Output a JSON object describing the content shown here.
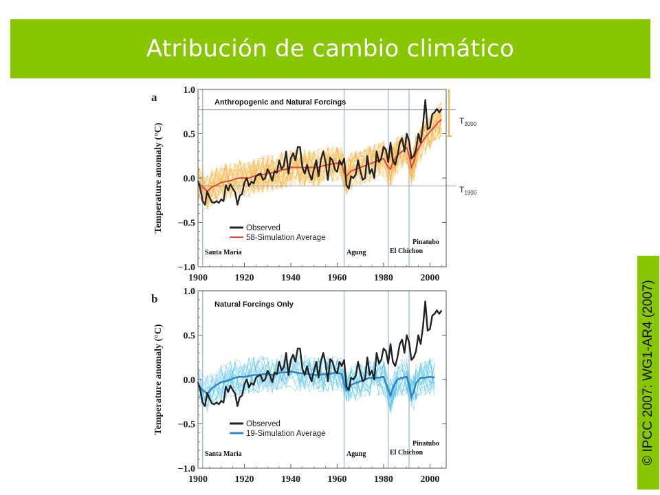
{
  "title": "Atribución de cambio climático",
  "credit": "© IPCC 2007: WG1-AR4 (2007)",
  "colors": {
    "banner": "#88c600",
    "observed": "#222222",
    "orange_mean": "#e8433b",
    "orange_ens": "#f7b84a",
    "blue_mean": "#2f86c5",
    "blue_ens": "#56c2ea",
    "volcano_line": "#9fb8cc",
    "bracket": "#f0b64c"
  },
  "axis": {
    "ylabel": "Temperature anomaly (°C)",
    "xticks": [
      "1900",
      "1920",
      "1940",
      "1960",
      "1980",
      "2000"
    ],
    "yticks": [
      "1.0",
      "0.5",
      "0.0",
      "−0.5",
      "−1.0"
    ]
  },
  "volcanoes": [
    {
      "name": "Santa Maria",
      "year": 1902
    },
    {
      "name": "Agung",
      "year": 1963
    },
    {
      "name": "El Chichon",
      "year": 1982
    },
    {
      "name": "Pinatubo",
      "year": 1991
    }
  ],
  "chart_data": [
    {
      "type": "line",
      "panel": "a",
      "title": "Anthropogenic and Natural Forcings",
      "ylabel": "Temperature anomaly (°C)",
      "xlim": [
        1900,
        2007
      ],
      "ylim": [
        -1.0,
        1.0
      ],
      "reference_labels": {
        "T2000": "T",
        "T2000_sub": "2000",
        "T1900": "T",
        "T1900_sub": "1900"
      },
      "reference_lines": {
        "T2000": 0.77,
        "T1900": -0.09
      },
      "legend": [
        "Observed",
        "58-Simulation Average"
      ],
      "legend_placement": "lower-left",
      "series": [
        {
          "name": "Observed",
          "x": [
            1900,
            1901,
            1902,
            1903,
            1904,
            1905,
            1906,
            1907,
            1908,
            1909,
            1910,
            1911,
            1912,
            1913,
            1914,
            1915,
            1916,
            1917,
            1918,
            1919,
            1920,
            1921,
            1922,
            1923,
            1924,
            1925,
            1926,
            1927,
            1928,
            1929,
            1930,
            1931,
            1932,
            1933,
            1934,
            1935,
            1936,
            1937,
            1938,
            1939,
            1940,
            1941,
            1942,
            1943,
            1944,
            1945,
            1946,
            1947,
            1948,
            1949,
            1950,
            1951,
            1952,
            1953,
            1954,
            1955,
            1956,
            1957,
            1958,
            1959,
            1960,
            1961,
            1962,
            1963,
            1964,
            1965,
            1966,
            1967,
            1968,
            1969,
            1970,
            1971,
            1972,
            1973,
            1974,
            1975,
            1976,
            1977,
            1978,
            1979,
            1980,
            1981,
            1982,
            1983,
            1984,
            1985,
            1986,
            1987,
            1988,
            1989,
            1990,
            1991,
            1992,
            1993,
            1994,
            1995,
            1996,
            1997,
            1998,
            1999,
            2000,
            2001,
            2002,
            2003,
            2004,
            2005
          ],
          "y": [
            -0.03,
            -0.12,
            -0.26,
            -0.3,
            -0.15,
            -0.22,
            -0.27,
            -0.28,
            -0.26,
            -0.28,
            -0.24,
            -0.26,
            -0.08,
            -0.14,
            -0.07,
            -0.12,
            -0.16,
            -0.3,
            -0.2,
            -0.18,
            -0.05,
            0.0,
            -0.09,
            -0.04,
            -0.06,
            0.02,
            0.04,
            0.05,
            -0.02,
            0.0,
            0.1,
            0.05,
            -0.03,
            0.08,
            0.06,
            0.2,
            0.1,
            0.14,
            0.3,
            0.05,
            0.22,
            0.28,
            0.2,
            0.35,
            0.35,
            0.12,
            0.05,
            0.15,
            0.05,
            -0.02,
            0.1,
            0.2,
            0.02,
            0.21,
            0.3,
            0.18,
            -0.02,
            0.23,
            0.2,
            0.1,
            0.07,
            0.2,
            0.15,
            0.22,
            -0.08,
            -0.12,
            0.02,
            0.0,
            0.04,
            0.2,
            0.08,
            -0.02,
            0.0,
            0.25,
            0.05,
            0.1,
            0.0,
            0.3,
            0.18,
            0.22,
            0.35,
            0.32,
            0.18,
            0.4,
            0.2,
            0.15,
            0.25,
            0.4,
            0.45,
            0.3,
            0.5,
            0.42,
            0.22,
            0.25,
            0.32,
            0.5,
            0.4,
            0.6,
            0.88,
            0.55,
            0.57,
            0.72,
            0.74,
            0.78,
            0.74,
            0.78
          ]
        },
        {
          "name": "58-Simulation Average",
          "x": [
            1900,
            1902,
            1904,
            1906,
            1908,
            1910,
            1912,
            1914,
            1916,
            1918,
            1920,
            1922,
            1924,
            1926,
            1928,
            1930,
            1932,
            1934,
            1936,
            1938,
            1940,
            1942,
            1944,
            1946,
            1948,
            1950,
            1952,
            1954,
            1956,
            1958,
            1960,
            1962,
            1963,
            1964,
            1965,
            1966,
            1968,
            1970,
            1972,
            1974,
            1976,
            1978,
            1980,
            1982,
            1983,
            1984,
            1985,
            1986,
            1988,
            1990,
            1991,
            1992,
            1993,
            1994,
            1996,
            1998,
            2000,
            2002,
            2004,
            2005
          ],
          "y": [
            -0.05,
            -0.1,
            -0.15,
            -0.1,
            -0.08,
            -0.05,
            -0.04,
            -0.03,
            -0.01,
            0.0,
            0.0,
            0.0,
            0.02,
            0.03,
            0.04,
            0.05,
            0.06,
            0.07,
            0.09,
            0.1,
            0.12,
            0.12,
            0.12,
            0.12,
            0.12,
            0.12,
            0.12,
            0.14,
            0.15,
            0.16,
            0.17,
            0.15,
            0.06,
            0.02,
            0.05,
            0.08,
            0.1,
            0.12,
            0.14,
            0.16,
            0.18,
            0.2,
            0.22,
            0.12,
            0.1,
            0.18,
            0.22,
            0.26,
            0.3,
            0.34,
            0.26,
            0.12,
            0.18,
            0.28,
            0.38,
            0.46,
            0.52,
            0.58,
            0.64,
            0.66
          ]
        }
      ]
    },
    {
      "type": "line",
      "panel": "b",
      "title": "Natural Forcings Only",
      "ylabel": "Temperature anomaly (°C)",
      "xlim": [
        1900,
        2007
      ],
      "ylim": [
        -1.0,
        1.0
      ],
      "legend": [
        "Observed",
        "19-Simulation Average"
      ],
      "legend_placement": "lower-left",
      "series": [
        {
          "name": "Observed",
          "x": [
            1900,
            1901,
            1902,
            1903,
            1904,
            1905,
            1906,
            1907,
            1908,
            1909,
            1910,
            1911,
            1912,
            1913,
            1914,
            1915,
            1916,
            1917,
            1918,
            1919,
            1920,
            1921,
            1922,
            1923,
            1924,
            1925,
            1926,
            1927,
            1928,
            1929,
            1930,
            1931,
            1932,
            1933,
            1934,
            1935,
            1936,
            1937,
            1938,
            1939,
            1940,
            1941,
            1942,
            1943,
            1944,
            1945,
            1946,
            1947,
            1948,
            1949,
            1950,
            1951,
            1952,
            1953,
            1954,
            1955,
            1956,
            1957,
            1958,
            1959,
            1960,
            1961,
            1962,
            1963,
            1964,
            1965,
            1966,
            1967,
            1968,
            1969,
            1970,
            1971,
            1972,
            1973,
            1974,
            1975,
            1976,
            1977,
            1978,
            1979,
            1980,
            1981,
            1982,
            1983,
            1984,
            1985,
            1986,
            1987,
            1988,
            1989,
            1990,
            1991,
            1992,
            1993,
            1994,
            1995,
            1996,
            1997,
            1998,
            1999,
            2000,
            2001,
            2002,
            2003,
            2004,
            2005
          ],
          "y": [
            -0.03,
            -0.12,
            -0.26,
            -0.3,
            -0.15,
            -0.22,
            -0.27,
            -0.28,
            -0.26,
            -0.28,
            -0.24,
            -0.26,
            -0.08,
            -0.14,
            -0.07,
            -0.12,
            -0.16,
            -0.3,
            -0.2,
            -0.18,
            -0.05,
            0.0,
            -0.09,
            -0.04,
            -0.06,
            0.02,
            0.04,
            0.05,
            -0.02,
            0.0,
            0.1,
            0.05,
            -0.03,
            0.08,
            0.06,
            0.2,
            0.1,
            0.14,
            0.3,
            0.05,
            0.22,
            0.28,
            0.2,
            0.35,
            0.35,
            0.12,
            0.05,
            0.15,
            0.05,
            -0.02,
            0.1,
            0.2,
            0.02,
            0.21,
            0.3,
            0.18,
            -0.02,
            0.23,
            0.2,
            0.1,
            0.07,
            0.2,
            0.15,
            0.22,
            -0.08,
            -0.12,
            0.02,
            0.0,
            0.04,
            0.2,
            0.08,
            -0.02,
            0.0,
            0.25,
            0.05,
            0.1,
            0.0,
            0.3,
            0.18,
            0.22,
            0.35,
            0.32,
            0.18,
            0.4,
            0.2,
            0.15,
            0.25,
            0.4,
            0.45,
            0.3,
            0.5,
            0.42,
            0.22,
            0.25,
            0.32,
            0.5,
            0.4,
            0.6,
            0.88,
            0.55,
            0.57,
            0.72,
            0.74,
            0.78,
            0.74,
            0.78
          ]
        },
        {
          "name": "19-Simulation Average",
          "x": [
            1900,
            1902,
            1904,
            1906,
            1908,
            1910,
            1912,
            1914,
            1916,
            1918,
            1920,
            1922,
            1924,
            1926,
            1928,
            1930,
            1932,
            1934,
            1936,
            1938,
            1940,
            1942,
            1944,
            1946,
            1948,
            1950,
            1952,
            1954,
            1956,
            1958,
            1960,
            1962,
            1963,
            1964,
            1965,
            1966,
            1968,
            1970,
            1972,
            1974,
            1976,
            1978,
            1980,
            1982,
            1983,
            1984,
            1985,
            1986,
            1988,
            1990,
            1991,
            1992,
            1993,
            1994,
            1996,
            1998,
            2000,
            2002
          ],
          "y": [
            -0.05,
            -0.12,
            -0.16,
            -0.1,
            -0.06,
            -0.03,
            -0.02,
            0.0,
            0.02,
            0.03,
            0.03,
            0.04,
            0.05,
            0.05,
            0.06,
            0.06,
            0.05,
            0.07,
            0.08,
            0.08,
            0.09,
            0.08,
            0.07,
            0.07,
            0.06,
            0.05,
            0.05,
            0.06,
            0.06,
            0.07,
            0.08,
            0.06,
            -0.05,
            -0.12,
            -0.1,
            -0.06,
            -0.04,
            -0.02,
            0.0,
            0.02,
            0.02,
            0.02,
            0.03,
            -0.12,
            -0.18,
            -0.1,
            -0.04,
            0.0,
            0.02,
            0.03,
            -0.06,
            -0.2,
            -0.14,
            -0.04,
            0.02,
            0.02,
            0.03,
            0.02
          ]
        }
      ]
    }
  ]
}
